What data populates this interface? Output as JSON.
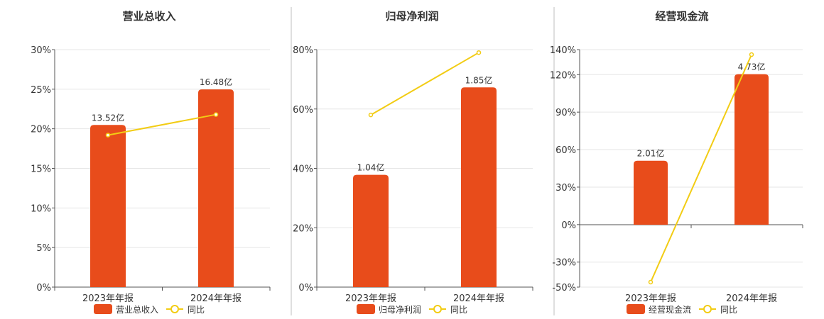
{
  "colors": {
    "bar": "#E84C1B",
    "line": "#F2CC14",
    "grid": "#e6e6e6",
    "axis": "#555555"
  },
  "legend": {
    "line_label": "同比"
  },
  "chart_data": [
    {
      "type": "bar",
      "title": "营业总收入",
      "categories": [
        "2023年年报",
        "2024年年报"
      ],
      "series": [
        {
          "name": "营业总收入",
          "type": "bar",
          "values": [
            13.52,
            16.48
          ],
          "labels": [
            "13.52亿",
            "16.48亿"
          ]
        },
        {
          "name": "同比",
          "type": "line",
          "values": [
            19.2,
            21.8
          ]
        }
      ],
      "yticks": [
        "0%",
        "5%",
        "10%",
        "15%",
        "20%",
        "25%",
        "30%"
      ],
      "ylim": [
        0,
        30
      ],
      "bar_value_max": 19.8,
      "grid": true,
      "legend_position": "bottom"
    },
    {
      "type": "bar",
      "title": "归母净利润",
      "categories": [
        "2023年年报",
        "2024年年报"
      ],
      "series": [
        {
          "name": "归母净利润",
          "type": "bar",
          "values": [
            1.04,
            1.85
          ],
          "labels": [
            "1.04亿",
            "1.85亿"
          ]
        },
        {
          "name": "同比",
          "type": "line",
          "values": [
            58,
            79
          ]
        }
      ],
      "yticks": [
        "0%",
        "20%",
        "40%",
        "60%",
        "80%"
      ],
      "ylim": [
        0,
        80
      ],
      "bar_value_max": 2.2,
      "grid": true,
      "legend_position": "bottom"
    },
    {
      "type": "bar",
      "title": "经营现金流",
      "categories": [
        "2023年年报",
        "2024年年报"
      ],
      "series": [
        {
          "name": "经营现金流",
          "type": "bar",
          "values": [
            2.01,
            4.73
          ],
          "labels": [
            "2.01亿",
            "4.73亿"
          ]
        },
        {
          "name": "同比",
          "type": "line",
          "values": [
            -46,
            136
          ]
        }
      ],
      "yticks": [
        "-50%",
        "-30%",
        "0%",
        "30%",
        "60%",
        "90%",
        "120%",
        "140%"
      ],
      "ytick_values": [
        -50,
        -30,
        0,
        30,
        60,
        90,
        120,
        140
      ],
      "ylim": [
        -50,
        140
      ],
      "bar_value_max": 5.5,
      "grid": true,
      "legend_position": "bottom"
    }
  ]
}
